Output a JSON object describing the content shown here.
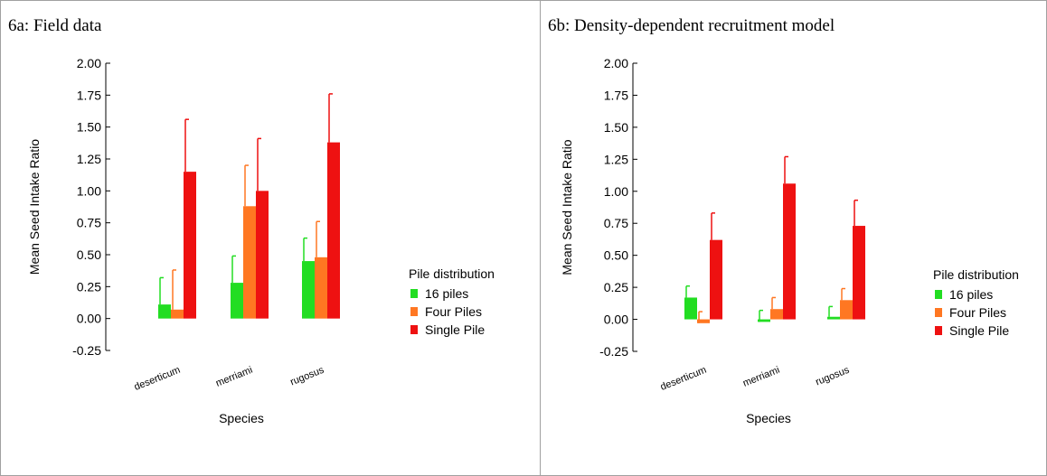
{
  "panels": [
    {
      "title": "6a: Field data"
    },
    {
      "title": "6b: Density-dependent recruitment model"
    }
  ],
  "chart_data": [
    {
      "type": "bar",
      "title": "6a: Field data",
      "xlabel": "Species",
      "ylabel": "Mean Seed Intake Ratio",
      "ylim": [
        -0.25,
        2.0
      ],
      "yticks": [
        "2.00",
        "1.75",
        "1.50",
        "1.25",
        "1.00",
        "0.75",
        "0.50",
        "0.25",
        "0.00",
        "-0.25"
      ],
      "categories": [
        "deserticum",
        "merriami",
        "rugosus"
      ],
      "legend_title": "Pile distribution",
      "legend_position": "right",
      "grid": false,
      "series": [
        {
          "name": "16 piles",
          "color": "#22dd22",
          "values": [
            0.11,
            0.28,
            0.45
          ],
          "errors": [
            0.21,
            0.21,
            0.18
          ]
        },
        {
          "name": "Four Piles",
          "color": "#ff7722",
          "values": [
            0.07,
            0.88,
            0.48
          ],
          "errors": [
            0.31,
            0.32,
            0.28
          ]
        },
        {
          "name": "Single Pile",
          "color": "#ee1111",
          "values": [
            1.15,
            1.0,
            1.38
          ],
          "errors": [
            0.41,
            0.41,
            0.38
          ]
        }
      ]
    },
    {
      "type": "bar",
      "title": "6b: Density-dependent recruitment model",
      "xlabel": "Species",
      "ylabel": "Mean Seed Intake Ratio",
      "ylim": [
        -0.25,
        2.0
      ],
      "yticks": [
        "2.00",
        "1.75",
        "1.50",
        "1.25",
        "1.00",
        "0.75",
        "0.50",
        "0.25",
        "0.00",
        "-0.25"
      ],
      "categories": [
        "deserticum",
        "merriami",
        "rugosus"
      ],
      "legend_title": "Pile distribution",
      "legend_position": "right",
      "grid": false,
      "series": [
        {
          "name": "16 piles",
          "color": "#22dd22",
          "values": [
            0.17,
            -0.02,
            0.02
          ],
          "errors": [
            0.09,
            0.09,
            0.08
          ]
        },
        {
          "name": "Four Piles",
          "color": "#ff7722",
          "values": [
            -0.03,
            0.08,
            0.15
          ],
          "errors": [
            0.09,
            0.09,
            0.09
          ]
        },
        {
          "name": "Single Pile",
          "color": "#ee1111",
          "values": [
            0.62,
            1.06,
            0.73
          ],
          "errors": [
            0.21,
            0.21,
            0.2
          ]
        }
      ]
    }
  ]
}
